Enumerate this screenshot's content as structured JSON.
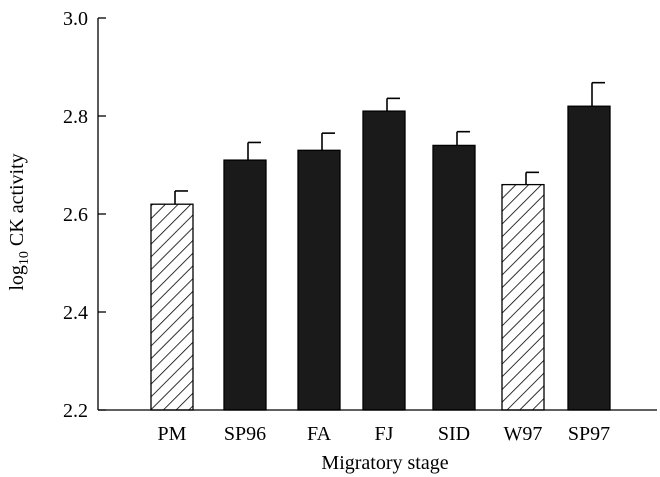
{
  "chart_data": {
    "type": "bar",
    "title": "",
    "xlabel": "Migratory stage",
    "ylabel_main": "log",
    "ylabel_sub": "10",
    "ylabel_rest": " CK activity",
    "ylim": [
      2.2,
      3.0
    ],
    "yticks": [
      "2.2",
      "2.4",
      "2.6",
      "2.8",
      "3.0"
    ],
    "grid": false,
    "categories": [
      "PM",
      "SP96",
      "FA",
      "FJ",
      "SID",
      "W97",
      "SP97"
    ],
    "values": [
      2.62,
      2.71,
      2.73,
      2.81,
      2.74,
      2.66,
      2.82
    ],
    "errors": [
      0.027,
      0.036,
      0.035,
      0.026,
      0.028,
      0.025,
      0.048
    ],
    "fills": [
      "hatched",
      "solid",
      "solid",
      "solid",
      "solid",
      "hatched",
      "solid"
    ],
    "colors": {
      "solid": "#1a1a1a",
      "axis": "#000000"
    }
  }
}
